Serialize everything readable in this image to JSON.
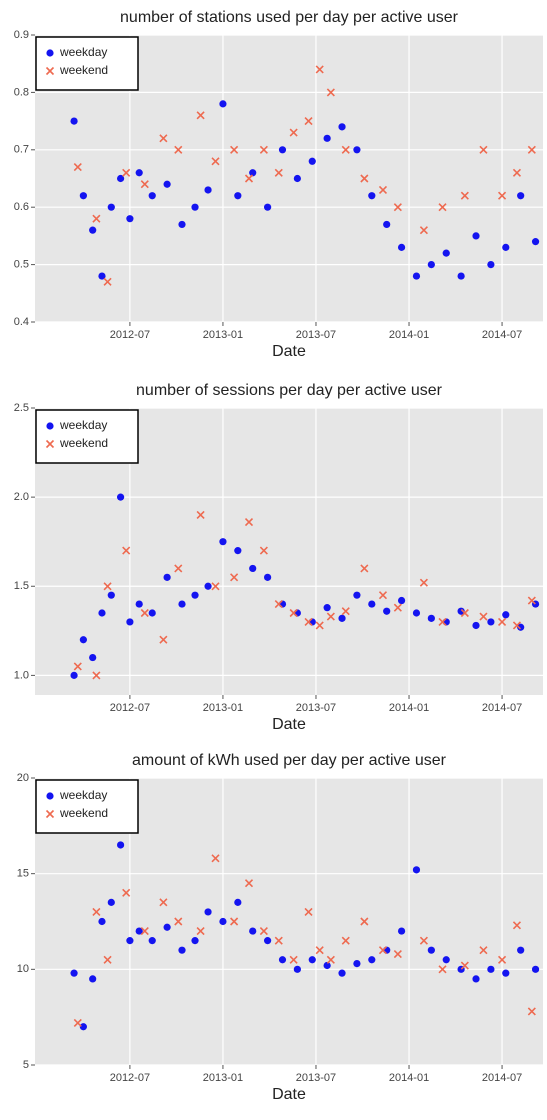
{
  "chart_data": [
    {
      "type": "scatter",
      "title": "number of stations used per day per active user",
      "x_label": "Date",
      "xlim": [
        2011.99,
        2014.72
      ],
      "ylim": [
        0.4,
        0.9
      ],
      "xticks": [
        {
          "value": 2012.5,
          "label": "2012-07"
        },
        {
          "value": 2013.0,
          "label": "2013-01"
        },
        {
          "value": 2013.5,
          "label": "2013-07"
        },
        {
          "value": 2014.0,
          "label": "2014-01"
        },
        {
          "value": 2014.5,
          "label": "2014-07"
        }
      ],
      "yticks": [
        0.4,
        0.5,
        0.6,
        0.7,
        0.8,
        0.9
      ],
      "grid": true,
      "legend": "top-left",
      "series": [
        {
          "name": "weekday",
          "color": "#1414f0",
          "marker": "circle",
          "x": [
            2012.2,
            2012.25,
            2012.3,
            2012.35,
            2012.4,
            2012.45,
            2012.5,
            2012.55,
            2012.62,
            2012.7,
            2012.78,
            2012.85,
            2012.92,
            2013.0,
            2013.08,
            2013.16,
            2013.24,
            2013.32,
            2013.4,
            2013.48,
            2013.56,
            2013.64,
            2013.72,
            2013.8,
            2013.88,
            2013.96,
            2014.04,
            2014.12,
            2014.2,
            2014.28,
            2014.36,
            2014.44,
            2014.52,
            2014.6,
            2014.68
          ],
          "values": [
            0.75,
            0.62,
            0.56,
            0.48,
            0.6,
            0.65,
            0.58,
            0.66,
            0.62,
            0.64,
            0.57,
            0.6,
            0.63,
            0.78,
            0.62,
            0.66,
            0.6,
            0.7,
            0.65,
            0.68,
            0.72,
            0.74,
            0.7,
            0.62,
            0.57,
            0.53,
            0.48,
            0.5,
            0.52,
            0.48,
            0.55,
            0.5,
            0.53,
            0.62,
            0.54
          ]
        },
        {
          "name": "weekend",
          "color": "#ee6a50",
          "marker": "cross",
          "x": [
            2012.22,
            2012.32,
            2012.38,
            2012.48,
            2012.58,
            2012.68,
            2012.76,
            2012.88,
            2012.96,
            2013.06,
            2013.14,
            2013.22,
            2013.3,
            2013.38,
            2013.46,
            2013.52,
            2013.58,
            2013.66,
            2013.76,
            2013.86,
            2013.94,
            2014.08,
            2014.18,
            2014.3,
            2014.4,
            2014.5,
            2014.58,
            2014.66
          ],
          "values": [
            0.67,
            0.58,
            0.47,
            0.66,
            0.64,
            0.72,
            0.7,
            0.76,
            0.68,
            0.7,
            0.65,
            0.7,
            0.66,
            0.73,
            0.75,
            0.84,
            0.8,
            0.7,
            0.65,
            0.63,
            0.6,
            0.56,
            0.6,
            0.62,
            0.7,
            0.62,
            0.66,
            0.7
          ]
        }
      ]
    },
    {
      "type": "scatter",
      "title": "number of sessions per day per active user",
      "x_label": "Date",
      "xlim": [
        2011.99,
        2014.72
      ],
      "ylim": [
        0.89,
        2.5
      ],
      "xticks": [
        {
          "value": 2012.5,
          "label": "2012-07"
        },
        {
          "value": 2013.0,
          "label": "2013-01"
        },
        {
          "value": 2013.5,
          "label": "2013-07"
        },
        {
          "value": 2014.0,
          "label": "2014-01"
        },
        {
          "value": 2014.5,
          "label": "2014-07"
        }
      ],
      "yticks": [
        {
          "value": 1,
          "label": "1.0"
        },
        1.5,
        {
          "value": 2,
          "label": "2.0"
        },
        2.5
      ],
      "grid": true,
      "legend": "top-left",
      "series": [
        {
          "name": "weekday",
          "color": "#1414f0",
          "marker": "circle",
          "x": [
            2012.2,
            2012.25,
            2012.3,
            2012.35,
            2012.4,
            2012.45,
            2012.5,
            2012.55,
            2012.62,
            2012.7,
            2012.78,
            2012.85,
            2012.92,
            2013.0,
            2013.08,
            2013.16,
            2013.24,
            2013.32,
            2013.4,
            2013.48,
            2013.56,
            2013.64,
            2013.72,
            2013.8,
            2013.88,
            2013.96,
            2014.04,
            2014.12,
            2014.2,
            2014.28,
            2014.36,
            2014.44,
            2014.52,
            2014.6,
            2014.68
          ],
          "values": [
            1.0,
            1.2,
            1.1,
            1.35,
            1.45,
            2.0,
            1.3,
            1.4,
            1.35,
            1.55,
            1.4,
            1.45,
            1.5,
            1.75,
            1.7,
            1.6,
            1.55,
            1.4,
            1.35,
            1.3,
            1.38,
            1.32,
            1.45,
            1.4,
            1.36,
            1.42,
            1.35,
            1.32,
            1.3,
            1.36,
            1.28,
            1.3,
            1.34,
            1.27,
            1.4
          ]
        },
        {
          "name": "weekend",
          "color": "#ee6a50",
          "marker": "cross",
          "x": [
            2012.22,
            2012.32,
            2012.38,
            2012.48,
            2012.58,
            2012.68,
            2012.76,
            2012.88,
            2012.96,
            2013.06,
            2013.14,
            2013.22,
            2013.3,
            2013.38,
            2013.46,
            2013.52,
            2013.58,
            2013.66,
            2013.76,
            2013.86,
            2013.94,
            2014.08,
            2014.18,
            2014.3,
            2014.4,
            2014.5,
            2014.58,
            2014.66
          ],
          "values": [
            1.05,
            1.0,
            1.5,
            1.7,
            1.35,
            1.2,
            1.6,
            1.9,
            1.5,
            1.55,
            1.86,
            1.7,
            1.4,
            1.35,
            1.3,
            1.28,
            1.33,
            1.36,
            1.6,
            1.45,
            1.38,
            1.52,
            1.3,
            1.35,
            1.33,
            1.3,
            1.28,
            1.42
          ]
        }
      ]
    },
    {
      "type": "scatter",
      "title": "amount of kWh used per day per active user",
      "x_label": "Date",
      "xlim": [
        2011.99,
        2014.72
      ],
      "ylim": [
        5,
        20
      ],
      "xticks": [
        {
          "value": 2012.5,
          "label": "2012-07"
        },
        {
          "value": 2013.0,
          "label": "2013-01"
        },
        {
          "value": 2013.5,
          "label": "2013-07"
        },
        {
          "value": 2014.0,
          "label": "2014-01"
        },
        {
          "value": 2014.5,
          "label": "2014-07"
        }
      ],
      "yticks": [
        5,
        10,
        15,
        20
      ],
      "grid": true,
      "legend": "top-left",
      "series": [
        {
          "name": "weekday",
          "color": "#1414f0",
          "marker": "circle",
          "x": [
            2012.2,
            2012.25,
            2012.3,
            2012.35,
            2012.4,
            2012.45,
            2012.5,
            2012.55,
            2012.62,
            2012.7,
            2012.78,
            2012.85,
            2012.92,
            2013.0,
            2013.08,
            2013.16,
            2013.24,
            2013.32,
            2013.4,
            2013.48,
            2013.56,
            2013.64,
            2013.72,
            2013.8,
            2013.88,
            2013.96,
            2014.04,
            2014.12,
            2014.2,
            2014.28,
            2014.36,
            2014.44,
            2014.52,
            2014.6,
            2014.68
          ],
          "values": [
            9.8,
            7.0,
            9.5,
            12.5,
            13.5,
            16.5,
            11.5,
            12.0,
            11.5,
            12.2,
            11.0,
            11.5,
            13.0,
            12.5,
            13.5,
            12.0,
            11.5,
            10.5,
            10.0,
            10.5,
            10.2,
            9.8,
            10.3,
            10.5,
            11.0,
            12.0,
            15.2,
            11.0,
            10.5,
            10.0,
            9.5,
            10.0,
            9.8,
            11.0,
            10.0
          ]
        },
        {
          "name": "weekend",
          "color": "#ee6a50",
          "marker": "cross",
          "x": [
            2012.22,
            2012.32,
            2012.38,
            2012.48,
            2012.58,
            2012.68,
            2012.76,
            2012.88,
            2012.96,
            2013.06,
            2013.14,
            2013.22,
            2013.3,
            2013.38,
            2013.46,
            2013.52,
            2013.58,
            2013.66,
            2013.76,
            2013.86,
            2013.94,
            2014.08,
            2014.18,
            2014.3,
            2014.4,
            2014.5,
            2014.58,
            2014.66
          ],
          "values": [
            7.2,
            13.0,
            10.5,
            14.0,
            12.0,
            13.5,
            12.5,
            12.0,
            15.8,
            12.5,
            14.5,
            12.0,
            11.5,
            10.5,
            13.0,
            11.0,
            10.5,
            11.5,
            12.5,
            11.0,
            10.8,
            11.5,
            10.0,
            10.2,
            11.0,
            10.5,
            12.3,
            7.8
          ]
        }
      ]
    }
  ]
}
